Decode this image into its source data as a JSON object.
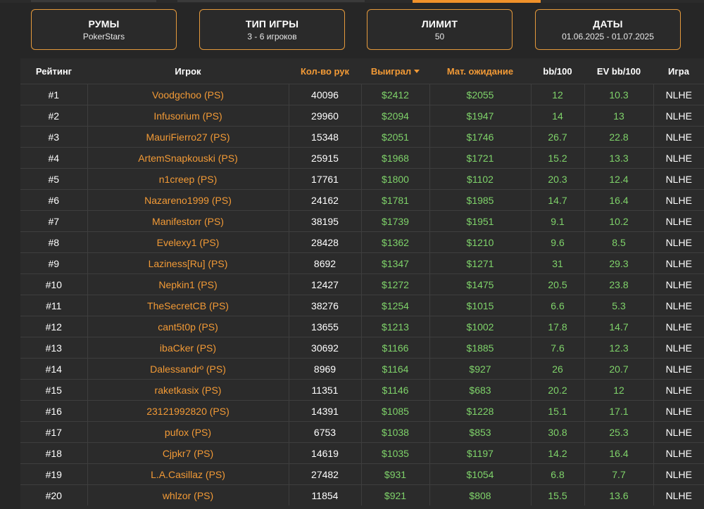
{
  "filters": [
    {
      "title": "РУМЫ",
      "value": "PokerStars"
    },
    {
      "title": "ТИП ИГРЫ",
      "value": "3 - 6 игроков"
    },
    {
      "title": "ЛИМИТ",
      "value": "50"
    },
    {
      "title": "ДАТЫ",
      "value": "01.06.2025 - 01.07.2025"
    }
  ],
  "columns": {
    "rank": "Рейтинг",
    "player": "Игрок",
    "hands": "Кол-во рук",
    "won": "Выиграл",
    "ev": "Мат. ожидание",
    "bb100": "bb/100",
    "evbb100": "EV bb/100",
    "game": "Игра"
  },
  "colors": {
    "accent": "#f29a36",
    "positive": "#7fd36a",
    "background": "#262626"
  },
  "rows": [
    {
      "rank": "#1",
      "player": "Voodgchoo (PS)",
      "hands": "40096",
      "won": "$2412",
      "ev": "$2055",
      "bb100": "12",
      "evbb100": "10.3",
      "game": "NLHE"
    },
    {
      "rank": "#2",
      "player": "Infusorium (PS)",
      "hands": "29960",
      "won": "$2094",
      "ev": "$1947",
      "bb100": "14",
      "evbb100": "13",
      "game": "NLHE"
    },
    {
      "rank": "#3",
      "player": "MauriFierro27 (PS)",
      "hands": "15348",
      "won": "$2051",
      "ev": "$1746",
      "bb100": "26.7",
      "evbb100": "22.8",
      "game": "NLHE"
    },
    {
      "rank": "#4",
      "player": "ArtemSnapkouski (PS)",
      "hands": "25915",
      "won": "$1968",
      "ev": "$1721",
      "bb100": "15.2",
      "evbb100": "13.3",
      "game": "NLHE"
    },
    {
      "rank": "#5",
      "player": "n1creep (PS)",
      "hands": "17761",
      "won": "$1800",
      "ev": "$1102",
      "bb100": "20.3",
      "evbb100": "12.4",
      "game": "NLHE"
    },
    {
      "rank": "#6",
      "player": "Nazareno1999 (PS)",
      "hands": "24162",
      "won": "$1781",
      "ev": "$1985",
      "bb100": "14.7",
      "evbb100": "16.4",
      "game": "NLHE"
    },
    {
      "rank": "#7",
      "player": "Manifestorr (PS)",
      "hands": "38195",
      "won": "$1739",
      "ev": "$1951",
      "bb100": "9.1",
      "evbb100": "10.2",
      "game": "NLHE"
    },
    {
      "rank": "#8",
      "player": "Evelexy1 (PS)",
      "hands": "28428",
      "won": "$1362",
      "ev": "$1210",
      "bb100": "9.6",
      "evbb100": "8.5",
      "game": "NLHE"
    },
    {
      "rank": "#9",
      "player": "Laziness[Ru] (PS)",
      "hands": "8692",
      "won": "$1347",
      "ev": "$1271",
      "bb100": "31",
      "evbb100": "29.3",
      "game": "NLHE"
    },
    {
      "rank": "#10",
      "player": "Nepkin1 (PS)",
      "hands": "12427",
      "won": "$1272",
      "ev": "$1475",
      "bb100": "20.5",
      "evbb100": "23.8",
      "game": "NLHE"
    },
    {
      "rank": "#11",
      "player": "TheSecretCB (PS)",
      "hands": "38276",
      "won": "$1254",
      "ev": "$1015",
      "bb100": "6.6",
      "evbb100": "5.3",
      "game": "NLHE"
    },
    {
      "rank": "#12",
      "player": "cant5t0p (PS)",
      "hands": "13655",
      "won": "$1213",
      "ev": "$1002",
      "bb100": "17.8",
      "evbb100": "14.7",
      "game": "NLHE"
    },
    {
      "rank": "#13",
      "player": "ibaCker (PS)",
      "hands": "30692",
      "won": "$1166",
      "ev": "$1885",
      "bb100": "7.6",
      "evbb100": "12.3",
      "game": "NLHE"
    },
    {
      "rank": "#14",
      "player": "Dalessandrº (PS)",
      "hands": "8969",
      "won": "$1164",
      "ev": "$927",
      "bb100": "26",
      "evbb100": "20.7",
      "game": "NLHE"
    },
    {
      "rank": "#15",
      "player": "raketkasix (PS)",
      "hands": "11351",
      "won": "$1146",
      "ev": "$683",
      "bb100": "20.2",
      "evbb100": "12",
      "game": "NLHE"
    },
    {
      "rank": "#16",
      "player": "23121992820 (PS)",
      "hands": "14391",
      "won": "$1085",
      "ev": "$1228",
      "bb100": "15.1",
      "evbb100": "17.1",
      "game": "NLHE"
    },
    {
      "rank": "#17",
      "player": "pufox (PS)",
      "hands": "6753",
      "won": "$1038",
      "ev": "$853",
      "bb100": "30.8",
      "evbb100": "25.3",
      "game": "NLHE"
    },
    {
      "rank": "#18",
      "player": "Cjpkr7 (PS)",
      "hands": "14619",
      "won": "$1035",
      "ev": "$1197",
      "bb100": "14.2",
      "evbb100": "16.4",
      "game": "NLHE"
    },
    {
      "rank": "#19",
      "player": "L.A.Casillaz (PS)",
      "hands": "27482",
      "won": "$931",
      "ev": "$1054",
      "bb100": "6.8",
      "evbb100": "7.7",
      "game": "NLHE"
    },
    {
      "rank": "#20",
      "player": "whlzor (PS)",
      "hands": "11854",
      "won": "$921",
      "ev": "$808",
      "bb100": "15.5",
      "evbb100": "13.6",
      "game": "NLHE"
    }
  ]
}
